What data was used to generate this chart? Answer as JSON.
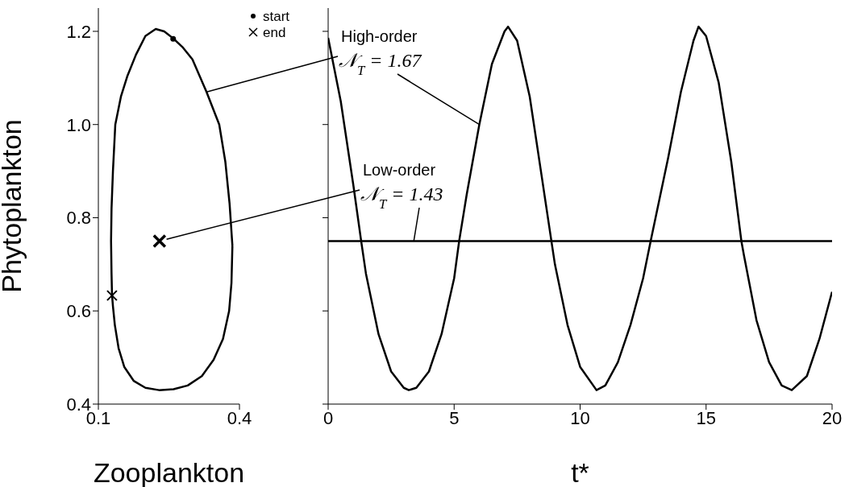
{
  "chart_data": [
    {
      "type": "line",
      "xlabel": "Zooplankton",
      "ylabel": "Phytoplankton",
      "xlim": [
        0.1,
        0.4
      ],
      "xticks": [
        0.1,
        0.4
      ],
      "ylim": [
        0.4,
        1.25
      ],
      "yticks": [
        0.4,
        0.6,
        0.8,
        {
          "value": 1.0,
          "label": "1.0"
        },
        1.2
      ],
      "legend": "top right",
      "series": [
        {
          "color": "#000000",
          "x": [
            0.127,
            0.128,
            0.131,
            0.136,
            0.148,
            0.162,
            0.18,
            0.2,
            0.222,
            0.24,
            0.259,
            0.28,
            0.3,
            0.33,
            0.357,
            0.37,
            0.379,
            0.385,
            null,
            0.127,
            0.128,
            0.129,
            0.131,
            0.135,
            0.143,
            0.155,
            0.175,
            0.2,
            0.229,
            0.26,
            0.29,
            0.32,
            0.345,
            0.365,
            0.378,
            0.383,
            0.385
          ],
          "values": [
            0.75,
            0.82,
            0.9,
            1.0,
            1.06,
            1.105,
            1.15,
            1.19,
            1.205,
            1.2,
            1.185,
            1.165,
            1.14,
            1.07,
            1.0,
            0.92,
            0.83,
            0.74,
            null,
            0.75,
            0.68,
            0.635,
            0.61,
            0.57,
            0.52,
            0.48,
            0.45,
            0.435,
            0.43,
            0.432,
            0.44,
            0.46,
            0.495,
            0.54,
            0.6,
            0.66,
            0.74
          ]
        },
        {
          "type": "scatter",
          "marker": "cross",
          "color": "#000000",
          "x": [
            0.23
          ],
          "values": [
            0.75
          ]
        },
        {
          "type": "scatter",
          "name": "start",
          "marker": "circle",
          "color": "#000000",
          "x": [
            0.259
          ],
          "values": [
            1.184
          ]
        },
        {
          "type": "scatter",
          "name": "end",
          "marker": "cross",
          "color": "#000000",
          "x": [
            0.129
          ],
          "values": [
            0.633
          ]
        }
      ]
    },
    {
      "type": "line",
      "xlabel": "t*",
      "xlim": [
        0,
        20
      ],
      "xticks": [
        0,
        5,
        10,
        15,
        20
      ],
      "ylim": [
        0.4,
        1.25
      ],
      "yticks": [
        {
          "value": 0.4,
          "label": null
        },
        {
          "value": 0.6,
          "label": null
        },
        {
          "value": 0.8,
          "label": null
        },
        {
          "value": 1.0,
          "label": null
        },
        {
          "value": 1.2,
          "label": null
        }
      ],
      "tick_labels": "x",
      "series": [
        {
          "name": "High-order 𝒩$_{T}$ = 1.67",
          "color": "#000000",
          "x": [
            0,
            0.5,
            1.0,
            1.31,
            1.5,
            2.0,
            2.5,
            3.0,
            3.2,
            3.5,
            4.0,
            4.5,
            5.0,
            5.2,
            5.5,
            6.0,
            6.5,
            7.0,
            7.14,
            7.5,
            8.0,
            8.5,
            8.86,
            9.0,
            9.5,
            10.0,
            10.65,
            11.0,
            11.5,
            12.0,
            12.5,
            12.8,
            13.5,
            14.0,
            14.5,
            14.7,
            15.0,
            15.5,
            16.0,
            16.4,
            16.5,
            17.0,
            17.5,
            18.0,
            18.4,
            19.0,
            19.5,
            20.0
          ],
          "values": [
            1.186,
            1.05,
            0.87,
            0.75,
            0.68,
            0.55,
            0.47,
            0.435,
            0.43,
            0.435,
            0.47,
            0.55,
            0.67,
            0.75,
            0.85,
            1.0,
            1.13,
            1.2,
            1.21,
            1.18,
            1.06,
            0.88,
            0.75,
            0.7,
            0.57,
            0.48,
            0.43,
            0.44,
            0.49,
            0.57,
            0.67,
            0.75,
            0.93,
            1.07,
            1.18,
            1.21,
            1.19,
            1.09,
            0.92,
            0.75,
            0.72,
            0.58,
            0.49,
            0.44,
            0.43,
            0.46,
            0.54,
            0.641
          ]
        },
        {
          "name": "Low-order 𝒩$_{T}$ = 1.43",
          "color": "#000000",
          "x": [
            0,
            20
          ],
          "values": [
            0.75,
            0.75
          ]
        }
      ]
    }
  ]
}
